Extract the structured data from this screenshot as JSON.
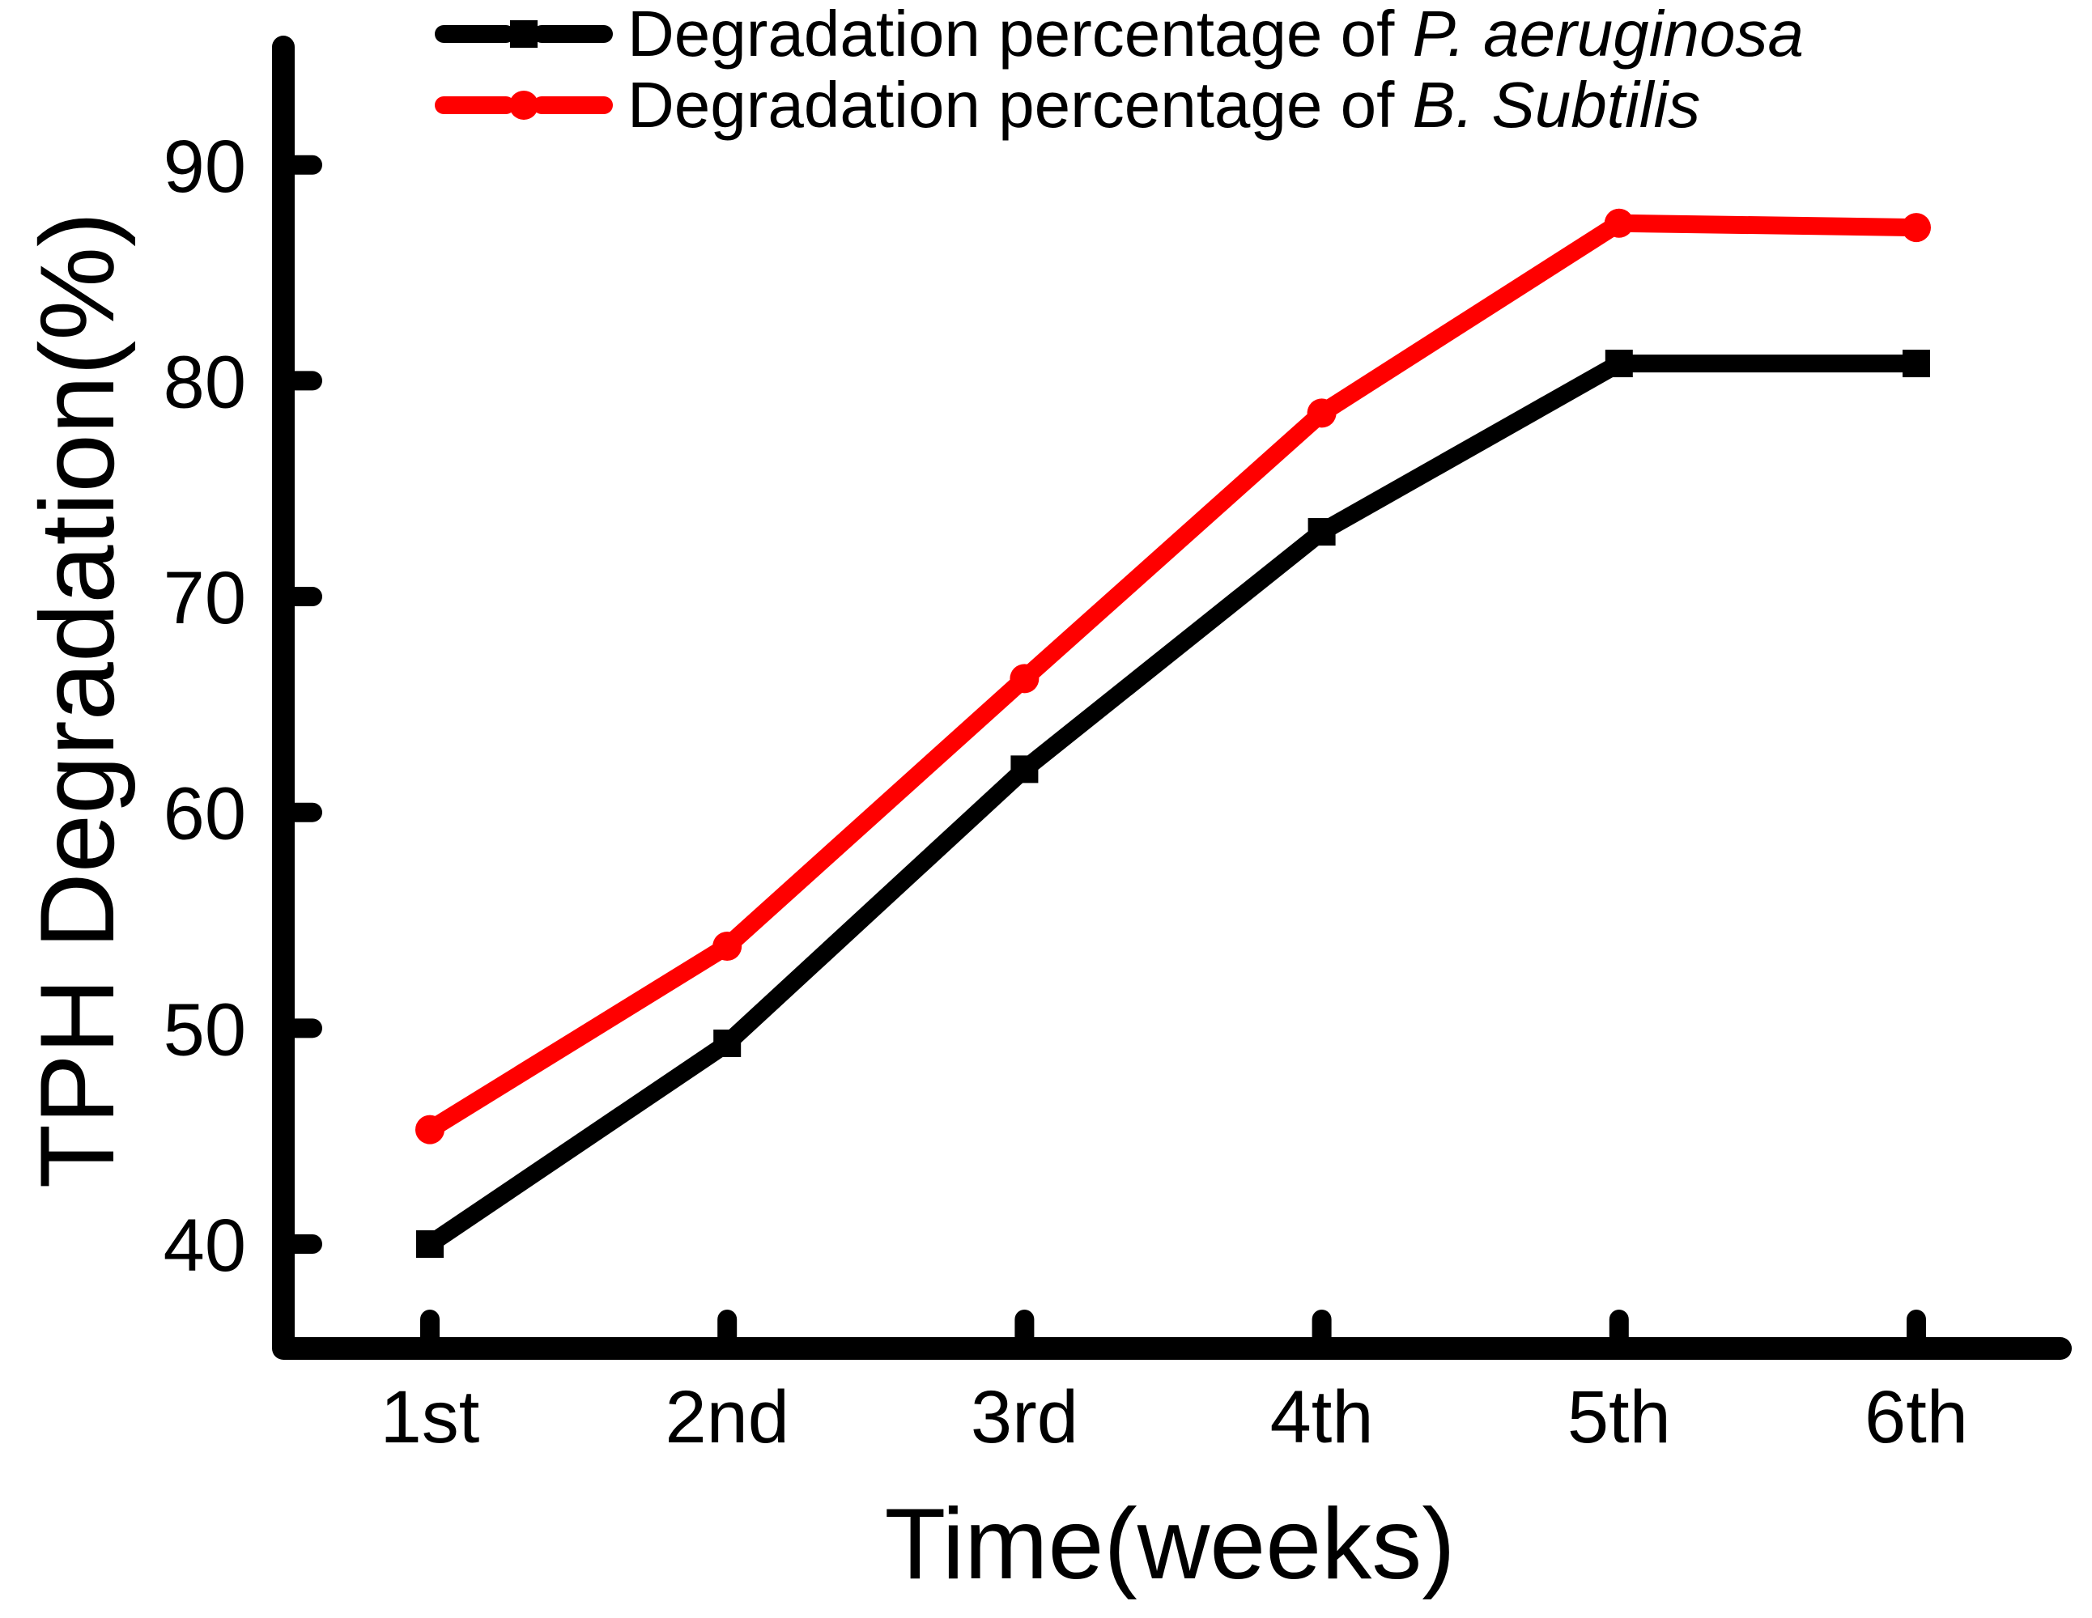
{
  "figure": {
    "background": "#ffffff",
    "axis_color": "#000000"
  },
  "legend": {
    "position": "top-inside",
    "entries": [
      {
        "prefix": "Degradation percentage of ",
        "species": "P. aeruginosa",
        "color": "#000000",
        "marker": "square"
      },
      {
        "prefix": "Degradation percentage of ",
        "species": "B. Subtilis",
        "color": "#ff0000",
        "marker": "circle"
      }
    ]
  },
  "chart_data": {
    "type": "line",
    "title": "",
    "xlabel": "Time(weeks)",
    "ylabel": "TPH Degradation(%)",
    "categories": [
      "1st",
      "2nd",
      "3rd",
      "4th",
      "5th",
      "6th"
    ],
    "yticks": [
      40,
      50,
      60,
      70,
      80,
      90
    ],
    "ylim": [
      35,
      95
    ],
    "grid": false,
    "series": [
      {
        "name": "Degradation percentage of P. aeruginosa",
        "color": "#000000",
        "marker": "square",
        "values": [
          40.0,
          49.3,
          62.0,
          73.0,
          80.8,
          80.8
        ]
      },
      {
        "name": "Degradation percentage of B. Subtilis",
        "color": "#ff0000",
        "marker": "circle",
        "values": [
          45.3,
          53.8,
          66.2,
          78.5,
          87.3,
          87.1
        ]
      }
    ]
  }
}
